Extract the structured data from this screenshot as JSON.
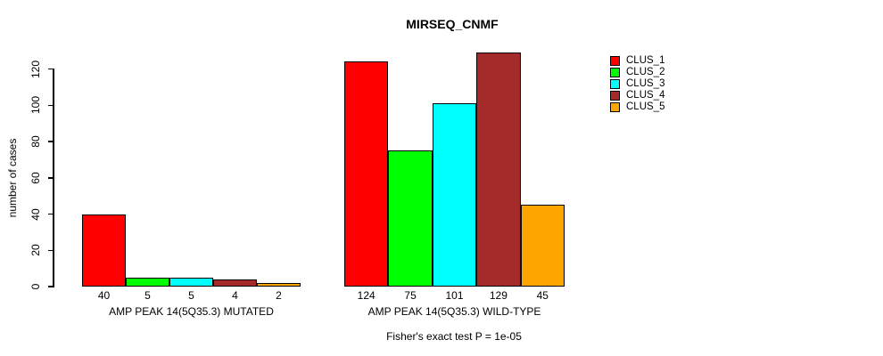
{
  "title": "MIRSEQ_CNMF",
  "footnote": "Fisher's exact test P = 1e-05",
  "chart_data": {
    "type": "bar",
    "title": "MIRSEQ_CNMF",
    "xlabel": "",
    "ylabel": "number of cases",
    "ylim": [
      0,
      130
    ],
    "yticks": [
      0,
      20,
      40,
      60,
      80,
      100,
      120
    ],
    "grid": false,
    "legend_position": "right",
    "categories": [
      "AMP PEAK 14(5Q35.3) MUTATED",
      "AMP PEAK 14(5Q35.3) WILD-TYPE"
    ],
    "series": [
      {
        "name": "CLUS_1",
        "color": "#FF0000",
        "values": [
          40,
          124
        ]
      },
      {
        "name": "CLUS_2",
        "color": "#00FF00",
        "values": [
          5,
          75
        ]
      },
      {
        "name": "CLUS_3",
        "color": "#00FFFF",
        "values": [
          5,
          101
        ]
      },
      {
        "name": "CLUS_4",
        "color": "#A52A2A",
        "values": [
          4,
          129
        ]
      },
      {
        "name": "CLUS_5",
        "color": "#FFA500",
        "values": [
          2,
          45
        ]
      }
    ],
    "bar_value_labels_shown": true,
    "annotation": "Fisher's exact test P = 1e-05"
  }
}
